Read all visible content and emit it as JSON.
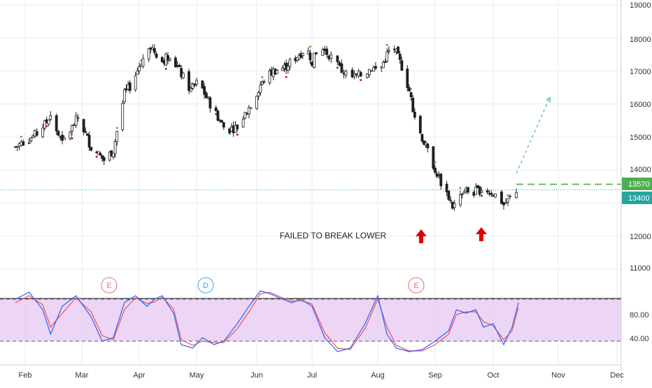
{
  "chart_data": [
    {
      "type": "candlestick",
      "title": "",
      "xlabel": "",
      "ylabel": "",
      "x_tick_labels": [
        "Feb",
        "Mar",
        "Apr",
        "May",
        "Jun",
        "Jul",
        "Aug",
        "Sep",
        "Oct",
        "Nov",
        "Dec"
      ],
      "y_tick_labels": [
        "19000",
        "18000",
        "17000",
        "16000",
        "15000",
        "14000",
        "12000",
        "11000"
      ],
      "ylim": [
        10000,
        19000
      ],
      "grid": true,
      "price_path_keypoints": [
        {
          "date": "Jan 27",
          "close": 14700
        },
        {
          "date": "Feb 07",
          "close": 15100
        },
        {
          "date": "Feb 14",
          "close": 15600
        },
        {
          "date": "Feb 20",
          "close": 14800
        },
        {
          "date": "Feb 28",
          "close": 15600
        },
        {
          "date": "Mar 06",
          "close": 14700
        },
        {
          "date": "Mar 13",
          "close": 14300
        },
        {
          "date": "Mar 18",
          "close": 14600
        },
        {
          "date": "Mar 24",
          "close": 16300
        },
        {
          "date": "Mar 28",
          "close": 16600
        },
        {
          "date": "Apr 02",
          "close": 17300
        },
        {
          "date": "Apr 06",
          "close": 17800
        },
        {
          "date": "Apr 09",
          "close": 17600
        },
        {
          "date": "Apr 13",
          "close": 17300
        },
        {
          "date": "Apr 17",
          "close": 17500
        },
        {
          "date": "Apr 22",
          "close": 17000
        },
        {
          "date": "Apr 28",
          "close": 16400
        },
        {
          "date": "May 02",
          "close": 16700
        },
        {
          "date": "May 06",
          "close": 16200
        },
        {
          "date": "May 12",
          "close": 15600
        },
        {
          "date": "May 16",
          "close": 15200
        },
        {
          "date": "May 22",
          "close": 15300
        },
        {
          "date": "May 26",
          "close": 15700
        },
        {
          "date": "May 30",
          "close": 16100
        },
        {
          "date": "Jun 04",
          "close": 16700
        },
        {
          "date": "Jun 10",
          "close": 17000
        },
        {
          "date": "Jun 16",
          "close": 17100
        },
        {
          "date": "Jun 22",
          "close": 17400
        },
        {
          "date": "Jun 28",
          "close": 17700
        },
        {
          "date": "Jul 01",
          "close": 17300
        },
        {
          "date": "Jul 05",
          "close": 17700
        },
        {
          "date": "Jul 09",
          "close": 17500
        },
        {
          "date": "Jul 15",
          "close": 17000
        },
        {
          "date": "Jul 20",
          "close": 16800
        },
        {
          "date": "Jul 25",
          "close": 16900
        },
        {
          "date": "Jul 29",
          "close": 17100
        },
        {
          "date": "Aug 02",
          "close": 17000
        },
        {
          "date": "Aug 06",
          "close": 17500
        },
        {
          "date": "Aug 09",
          "close": 17800
        },
        {
          "date": "Aug 12",
          "close": 17400
        },
        {
          "date": "Aug 15",
          "close": 17000
        },
        {
          "date": "Aug 18",
          "close": 16400
        },
        {
          "date": "Aug 22",
          "close": 15400
        },
        {
          "date": "Aug 27",
          "close": 14700
        },
        {
          "date": "Sep 02",
          "close": 13900
        },
        {
          "date": "Sep 05",
          "close": 13500
        },
        {
          "date": "Sep 08",
          "close": 13200
        },
        {
          "date": "Sep 10",
          "close": 12900
        },
        {
          "date": "Sep 12",
          "close": 13000
        },
        {
          "date": "Sep 16",
          "close": 13400
        },
        {
          "date": "Sep 20",
          "close": 13300
        },
        {
          "date": "Sep 26",
          "close": 13450
        },
        {
          "date": "Oct 01",
          "close": 13300
        },
        {
          "date": "Oct 04",
          "close": 13150
        },
        {
          "date": "Oct 06",
          "close": 12950
        },
        {
          "date": "Oct 09",
          "close": 13150
        },
        {
          "date": "Oct 12",
          "close": 13400
        }
      ],
      "price_labels": [
        {
          "value": 13570,
          "text": "13570",
          "color": "#4caf50"
        },
        {
          "value": 13400,
          "text": "13400",
          "color": "#26a69a"
        }
      ],
      "resistance_line": {
        "value": 13570,
        "from_date": "Oct 12",
        "color": "#4caf50"
      },
      "projection_arrow": {
        "from": {
          "date": "Oct 12",
          "price": 13900
        },
        "to": {
          "date": "Oct 28",
          "price": 16200
        },
        "color": "#26a69a"
      },
      "annotations": [
        {
          "text": "FAILED TO BREAK LOWER",
          "date": "Aug 09",
          "price": 12000
        },
        {
          "type": "up-arrow",
          "date": "Sep 10",
          "price": 11900,
          "color": "#e00000"
        },
        {
          "type": "up-arrow",
          "date": "Oct 06",
          "price": 11900,
          "color": "#e00000"
        }
      ],
      "event_markers": [
        {
          "label": "E",
          "date": "Mar 27",
          "color": "#e57373"
        },
        {
          "label": "D",
          "date": "May 22",
          "color": "#42a5f5"
        },
        {
          "label": "E",
          "date": "Sep 07",
          "color": "#e57373"
        }
      ]
    },
    {
      "type": "line",
      "title": "",
      "ylim": [
        0,
        100
      ],
      "y_tick_labels": [
        "80.00",
        "40.00"
      ],
      "bands": {
        "upper": 80,
        "lower": 20,
        "fill": "#e1bee7"
      },
      "series": [
        {
          "color": "#2962ff",
          "x": [
            "Jan 27",
            "Feb 03",
            "Feb 10",
            "Feb 14",
            "Feb 20",
            "Feb 27",
            "Mar 06",
            "Mar 12",
            "Mar 18",
            "Mar 24",
            "Mar 30",
            "Apr 05",
            "Apr 09",
            "Apr 13",
            "Apr 19",
            "Apr 23",
            "Apr 29",
            "May 04",
            "May 10",
            "May 15",
            "May 22",
            "May 28",
            "Jun 03",
            "Jun 08",
            "Jun 15",
            "Jun 20",
            "Jun 25",
            "Jul 01",
            "Jul 07",
            "Jul 13",
            "Jul 19",
            "Jul 26",
            "Aug 01",
            "Aug 06",
            "Aug 11",
            "Aug 18",
            "Aug 25",
            "Sep 01",
            "Sep 08",
            "Sep 12",
            "Sep 17",
            "Sep 22",
            "Sep 26",
            "Oct 01",
            "Oct 06",
            "Oct 10",
            "Oct 13"
          ],
          "values": [
            80,
            90,
            65,
            30,
            70,
            85,
            55,
            20,
            25,
            75,
            85,
            70,
            80,
            85,
            60,
            15,
            10,
            25,
            15,
            20,
            45,
            70,
            92,
            88,
            80,
            75,
            80,
            70,
            25,
            5,
            10,
            45,
            85,
            30,
            10,
            5,
            8,
            20,
            35,
            65,
            60,
            65,
            40,
            45,
            15,
            40,
            75
          ]
        },
        {
          "color": "#ef5350",
          "x": [
            "Jan 27",
            "Feb 03",
            "Feb 10",
            "Feb 14",
            "Feb 20",
            "Feb 27",
            "Mar 06",
            "Mar 12",
            "Mar 18",
            "Mar 24",
            "Mar 30",
            "Apr 05",
            "Apr 09",
            "Apr 13",
            "Apr 19",
            "Apr 23",
            "Apr 29",
            "May 04",
            "May 10",
            "May 15",
            "May 22",
            "May 28",
            "Jun 03",
            "Jun 08",
            "Jun 15",
            "Jun 20",
            "Jun 25",
            "Jul 01",
            "Jul 07",
            "Jul 13",
            "Jul 19",
            "Jul 26",
            "Aug 01",
            "Aug 06",
            "Aug 11",
            "Aug 18",
            "Aug 25",
            "Sep 01",
            "Sep 08",
            "Sep 12",
            "Sep 17",
            "Sep 22",
            "Sep 26",
            "Oct 01",
            "Oct 06",
            "Oct 10",
            "Oct 13"
          ],
          "values": [
            75,
            85,
            72,
            40,
            60,
            82,
            62,
            28,
            22,
            65,
            82,
            74,
            76,
            83,
            66,
            22,
            14,
            20,
            18,
            18,
            38,
            62,
            88,
            90,
            82,
            77,
            78,
            73,
            32,
            10,
            8,
            38,
            80,
            40,
            14,
            6,
            6,
            15,
            30,
            58,
            62,
            62,
            48,
            42,
            22,
            35,
            68
          ]
        }
      ]
    }
  ],
  "labels": {
    "failed": "FAILED TO BREAK LOWER",
    "price_13570": "13570",
    "price_13400": "13400",
    "event_e1": "E",
    "event_d": "D",
    "event_e2": "E",
    "rsi_80": "80.00",
    "rsi_40": "40.00",
    "y_19000": "19000",
    "y_18000": "18000",
    "y_17000": "17000",
    "y_16000": "16000",
    "y_15000": "15000",
    "y_14000": "14000",
    "y_12000": "12000",
    "y_11000": "11000",
    "m_feb": "Feb",
    "m_mar": "Mar",
    "m_apr": "Apr",
    "m_may": "May",
    "m_jun": "Jun",
    "m_jul": "Jul",
    "m_aug": "Aug",
    "m_sep": "Sep",
    "m_oct": "Oct",
    "m_nov": "Nov",
    "m_dec": "Dec"
  },
  "colors": {
    "up": "#26a69a",
    "down": "#ef5350",
    "candle_body": "#1f1f1f",
    "grid": "#ebebeb",
    "axis_text": "#333333",
    "dotted_line": "#26a69a",
    "dashed_line": "#4caf50"
  }
}
